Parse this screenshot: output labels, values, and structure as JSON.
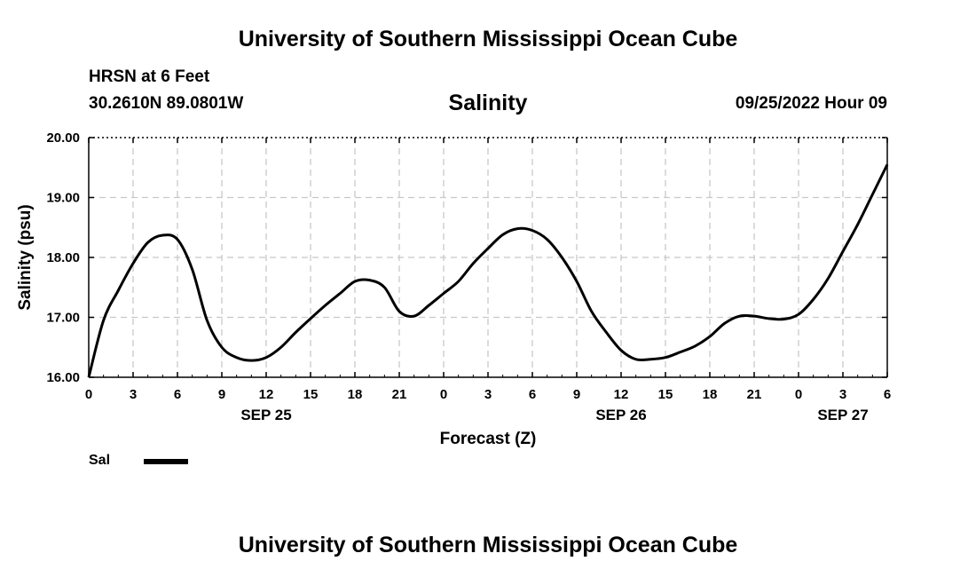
{
  "header": {
    "title": "University of Southern Mississippi Ocean Cube",
    "station": "HRSN at 6 Feet",
    "coords": "30.2610N  89.0801W",
    "variable": "Salinity",
    "datetime": "09/25/2022 Hour 09"
  },
  "footer": {
    "title": "University of Southern Mississippi Ocean Cube"
  },
  "chart_data": {
    "type": "line",
    "title": "Salinity",
    "xlabel": "Forecast (Z)",
    "ylabel": "Salinity (psu)",
    "ylim": [
      16.0,
      20.0
    ],
    "yticks": [
      "16.00",
      "17.00",
      "18.00",
      "19.00",
      "20.00"
    ],
    "xlim": [
      0,
      54
    ],
    "xtick_labels": [
      "0",
      "3",
      "6",
      "9",
      "12",
      "15",
      "18",
      "21",
      "0",
      "3",
      "6",
      "9",
      "12",
      "15",
      "18",
      "21",
      "0",
      "3",
      "6"
    ],
    "date_labels": [
      {
        "label": "SEP 25",
        "hour": 12
      },
      {
        "label": "SEP 26",
        "hour": 36
      },
      {
        "label": "SEP 27",
        "hour": 51
      }
    ],
    "grid": true,
    "legend_position": "bottom-left",
    "series": [
      {
        "name": "Sal",
        "color": "#000000",
        "x": [
          0,
          1,
          2,
          3,
          4,
          5,
          6,
          7,
          8,
          9,
          10,
          11,
          12,
          13,
          14,
          15,
          16,
          17,
          18,
          19,
          20,
          21,
          22,
          23,
          24,
          25,
          26,
          27,
          28,
          29,
          30,
          31,
          32,
          33,
          34,
          35,
          36,
          37,
          38,
          39,
          40,
          41,
          42,
          43,
          44,
          45,
          46,
          47,
          48,
          49,
          50,
          51,
          52,
          53,
          54
        ],
        "values": [
          16.0,
          16.95,
          17.45,
          17.9,
          18.25,
          18.37,
          18.3,
          17.8,
          16.95,
          16.5,
          16.33,
          16.28,
          16.33,
          16.5,
          16.75,
          16.98,
          17.2,
          17.4,
          17.6,
          17.62,
          17.5,
          17.1,
          17.02,
          17.2,
          17.4,
          17.6,
          17.9,
          18.15,
          18.38,
          18.48,
          18.45,
          18.3,
          18.0,
          17.6,
          17.1,
          16.75,
          16.45,
          16.3,
          16.3,
          16.33,
          16.42,
          16.52,
          16.68,
          16.9,
          17.02,
          17.02,
          16.98,
          16.97,
          17.05,
          17.3,
          17.65,
          18.1,
          18.55,
          19.05,
          19.55
        ]
      }
    ]
  },
  "legend": {
    "label": "Sal"
  }
}
